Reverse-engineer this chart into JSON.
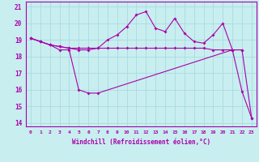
{
  "xlabel": "Windchill (Refroidissement éolien,°C)",
  "bg_color": "#c8eef0",
  "grid_color": "#a8dce0",
  "line_color": "#aa00aa",
  "xlim": [
    -0.5,
    23.5
  ],
  "ylim": [
    13.8,
    21.3
  ],
  "yticks": [
    14,
    15,
    16,
    17,
    18,
    19,
    20,
    21
  ],
  "xticks": [
    0,
    1,
    2,
    3,
    4,
    5,
    6,
    7,
    8,
    9,
    10,
    11,
    12,
    13,
    14,
    15,
    16,
    17,
    18,
    19,
    20,
    21,
    22,
    23
  ],
  "line1_x": [
    0,
    1,
    2,
    3,
    4,
    5,
    6,
    7,
    21,
    22,
    23
  ],
  "line1_y": [
    19.1,
    18.9,
    18.7,
    18.4,
    18.4,
    16.0,
    15.8,
    15.8,
    18.4,
    15.9,
    14.3
  ],
  "line2_x": [
    0,
    1,
    2,
    3,
    4,
    5,
    6,
    7,
    8,
    9,
    10,
    11,
    12,
    13,
    14,
    15,
    16,
    17,
    18,
    19,
    20,
    21,
    22
  ],
  "line2_y": [
    19.1,
    18.9,
    18.7,
    18.6,
    18.5,
    18.5,
    18.5,
    18.5,
    18.5,
    18.5,
    18.5,
    18.5,
    18.5,
    18.5,
    18.5,
    18.5,
    18.5,
    18.5,
    18.5,
    18.4,
    18.4,
    18.4,
    18.4
  ],
  "line3_x": [
    0,
    1,
    2,
    3,
    4,
    5,
    6,
    7,
    8,
    9,
    10,
    11,
    12,
    13,
    14,
    15,
    16,
    17,
    18,
    19,
    20,
    21,
    22,
    23
  ],
  "line3_y": [
    19.1,
    18.9,
    18.7,
    18.6,
    18.5,
    18.4,
    18.4,
    18.5,
    19.0,
    19.3,
    19.8,
    20.5,
    20.7,
    19.7,
    19.5,
    20.3,
    19.4,
    18.9,
    18.8,
    19.3,
    20.0,
    18.4,
    18.4,
    14.3
  ]
}
